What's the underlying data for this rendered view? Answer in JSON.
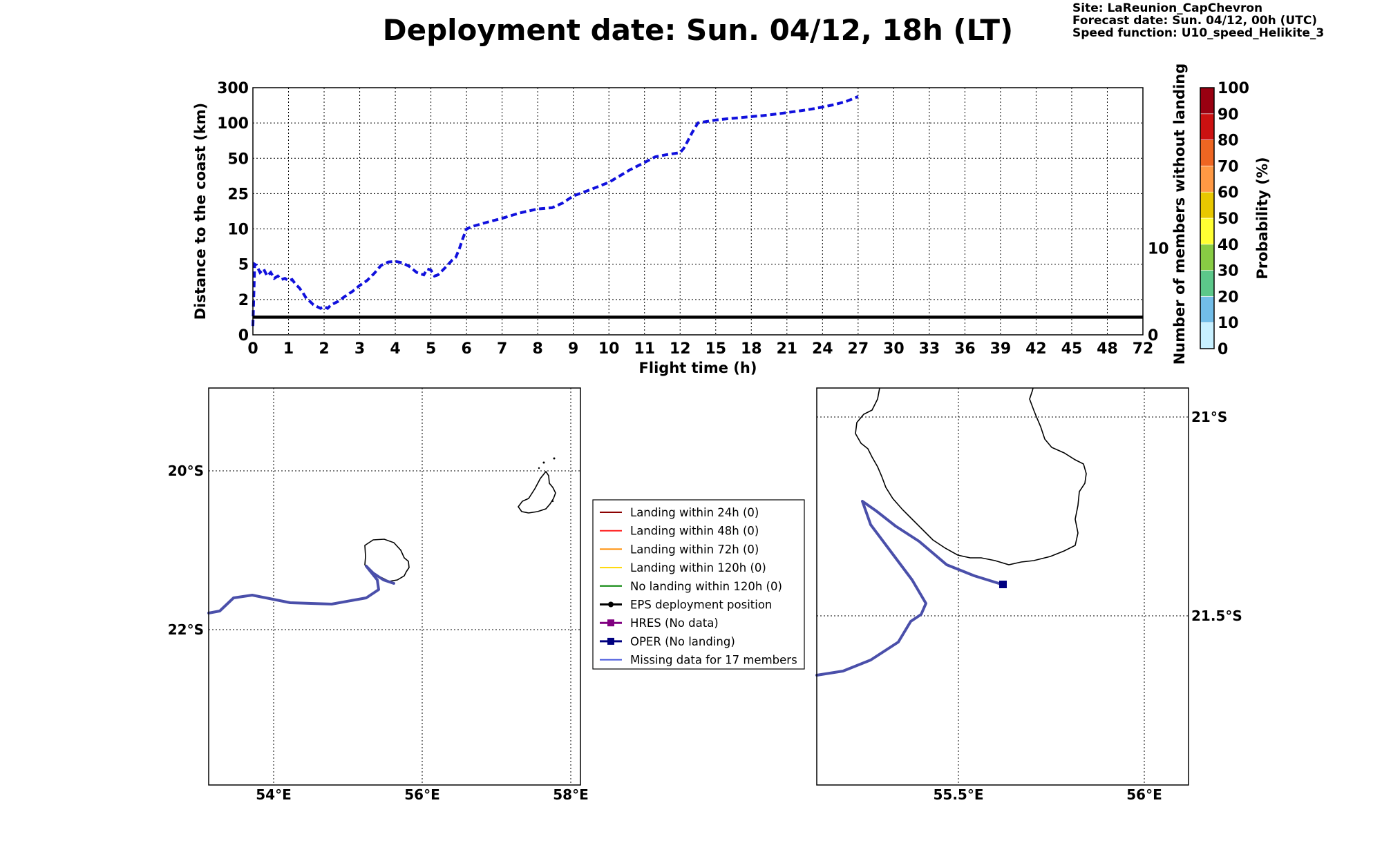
{
  "title": "Deployment date: Sun. 04/12, 18h (LT)",
  "info": {
    "site": "Site: LaReunion_CapChevron",
    "forecast": "Forecast date: Sun. 04/12, 00h (UTC)",
    "speed": "Speed function: U10_speed_Helikite_3"
  },
  "chart_data": [
    {
      "type": "line",
      "xlabel": "Flight time (h)",
      "ylabel": "Distance to the coast (km)",
      "ylabel_right": "Number of members without landing",
      "x_ticks": [
        "0",
        "1",
        "2",
        "3",
        "4",
        "5",
        "6",
        "7",
        "8",
        "9",
        "10",
        "11",
        "12",
        "15",
        "18",
        "21",
        "24",
        "27",
        "30",
        "33",
        "36",
        "39",
        "42",
        "45",
        "48",
        "72"
      ],
      "y_ticks": [
        "0",
        "2",
        "5",
        "10",
        "25",
        "50",
        "100",
        "300"
      ],
      "y_ticks_right": [
        "0",
        "10"
      ],
      "grid": true,
      "series": [
        {
          "name": "OPER",
          "style": "dashed",
          "color": "#1010dd",
          "x": [
            0,
            0.05,
            0.1,
            0.2,
            0.3,
            0.4,
            0.5,
            0.6,
            0.7,
            0.8,
            0.9,
            1.0,
            1.1,
            1.2,
            1.3,
            1.4,
            1.5,
            1.6,
            1.7,
            1.8,
            1.9,
            2.0,
            2.1,
            2.2,
            2.4,
            2.6,
            2.8,
            3.0,
            3.2,
            3.4,
            3.6,
            3.8,
            4.0,
            4.2,
            4.4,
            4.6,
            4.8,
            4.9,
            5.0,
            5.1,
            5.2,
            5.4,
            5.6,
            5.7,
            5.8,
            5.9,
            6.0,
            6.2,
            6.5,
            7.0,
            7.5,
            8.0,
            8.4,
            8.7,
            9.0,
            9.5,
            10.0,
            10.3,
            10.6,
            11.0,
            11.3,
            11.6,
            12.0,
            12.3,
            12.6,
            13.0,
            13.5,
            14.0,
            14.5,
            15,
            16,
            17,
            18,
            19,
            20,
            21,
            22,
            23,
            24,
            25,
            26,
            27
          ],
          "values": [
            0.5,
            5.0,
            4.9,
            4.3,
            4.6,
            4.0,
            4.3,
            3.8,
            4.0,
            3.7,
            3.8,
            3.6,
            3.7,
            3.3,
            3.0,
            2.6,
            2.1,
            1.9,
            1.7,
            1.6,
            1.5,
            1.6,
            1.5,
            1.7,
            1.9,
            2.3,
            2.7,
            3.2,
            3.6,
            4.2,
            4.9,
            5.3,
            5.4,
            5.2,
            4.8,
            4.3,
            4.1,
            4.6,
            4.5,
            4.0,
            4.1,
            4.7,
            5.6,
            6.0,
            7.2,
            8.7,
            10.0,
            11.2,
            12.5,
            14.5,
            16.8,
            18.5,
            19.0,
            21.0,
            24.0,
            28.0,
            33.0,
            37.5,
            42.0,
            47.0,
            52.0,
            55.0,
            58.0,
            64.0,
            73.0,
            86.0,
            100.0,
            106.0,
            111.0,
            117.0,
            124.0,
            130.0,
            136.0,
            142.0,
            150.0,
            159.0,
            168.0,
            178.0,
            190.0,
            204.0,
            222.0,
            250.0
          ]
        },
        {
          "name": "",
          "style": "solid",
          "color": "#000000",
          "x": [
            0,
            72
          ],
          "values": [
            1,
            1
          ]
        }
      ]
    }
  ],
  "colorbar": {
    "label": "Probability (%)",
    "ticks": [
      "0",
      "10",
      "20",
      "30",
      "40",
      "50",
      "60",
      "70",
      "80",
      "90",
      "100"
    ],
    "colors": [
      "#c8f0ff",
      "#72bde8",
      "#5cc88a",
      "#88cc44",
      "#ffff33",
      "#e8c800",
      "#ff9944",
      "#ee6622",
      "#cc1111",
      "#990011"
    ]
  },
  "legend": [
    {
      "label": "Landing within 24h (0)",
      "color": "#8b0000"
    },
    {
      "label": "Landing within 48h (0)",
      "color": "#ff1a1a"
    },
    {
      "label": "Landing within 72h (0)",
      "color": "#ff8c00"
    },
    {
      "label": "Landing within 120h (0)",
      "color": "#ffd700"
    },
    {
      "label": "No landing within 120h (0)",
      "color": "#008000"
    },
    {
      "label": "EPS deployment position",
      "color": "#000000"
    },
    {
      "label": "HRES (No data)",
      "color": "#800080"
    },
    {
      "label": "OPER (No landing)",
      "color": "#000080"
    },
    {
      "label": "Missing data for 17 members",
      "color": "#4455dd"
    }
  ],
  "map_left": {
    "lon_ticks": [
      "54°E",
      "56°E",
      "58°E"
    ],
    "lat_ticks": [
      "20°S",
      "22°S"
    ]
  },
  "map_right": {
    "lon_ticks": [
      "55.5°E",
      "56°E"
    ],
    "lat_ticks": [
      "21°S",
      "21.5°S"
    ]
  }
}
